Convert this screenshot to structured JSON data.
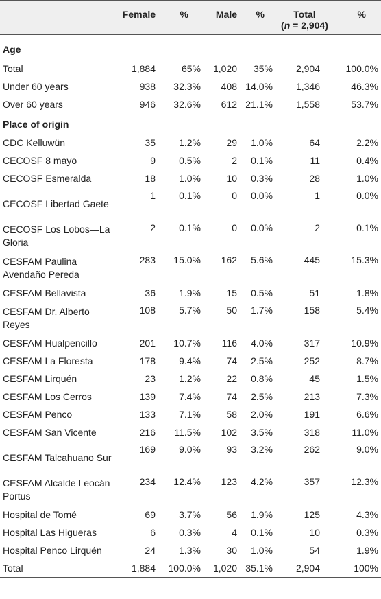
{
  "header": {
    "col0": "",
    "female": "Female",
    "female_pct": "%",
    "male": "Male",
    "male_pct": "%",
    "total": "Total",
    "total_n_label": "n",
    "total_n_value": " = 2,904",
    "total_open": "(",
    "total_close": ")",
    "total_pct": "%"
  },
  "sections": {
    "age": "Age",
    "origin": "Place of origin"
  },
  "age_rows": [
    {
      "label": "Total",
      "female": "1,884",
      "female_pct": "65%",
      "male": "1,020",
      "male_pct": "35%",
      "total": "2,904",
      "total_pct": "100.0%"
    },
    {
      "label": "Under 60 years",
      "female": "938",
      "female_pct": "32.3%",
      "male": "408",
      "male_pct": "14.0%",
      "total": "1,346",
      "total_pct": "46.3%"
    },
    {
      "label": "Over 60 years",
      "female": "946",
      "female_pct": "32.6%",
      "male": "612",
      "male_pct": "21.1%",
      "total": "1,558",
      "total_pct": "53.7%"
    }
  ],
  "origin_rows": [
    {
      "label": "CDC Kelluwün",
      "female": "35",
      "female_pct": "1.2%",
      "male": "29",
      "male_pct": "1.0%",
      "total": "64",
      "total_pct": "2.2%"
    },
    {
      "label": "CECOSF 8 mayo",
      "female": "9",
      "female_pct": "0.5%",
      "male": "2",
      "male_pct": "0.1%",
      "total": "11",
      "total_pct": "0.4%"
    },
    {
      "label": "CECOSF Esmeralda",
      "female": "18",
      "female_pct": "1.0%",
      "male": "10",
      "male_pct": "0.3%",
      "total": "28",
      "total_pct": "1.0%"
    },
    {
      "label": "CECOSF Libertad Gaete",
      "female": "1",
      "female_pct": "0.1%",
      "male": "0",
      "male_pct": "0.0%",
      "total": "1",
      "total_pct": "0.0%"
    },
    {
      "label": "CECOSF Los Lobos—La Gloria",
      "female": "2",
      "female_pct": "0.1%",
      "male": "0",
      "male_pct": "0.0%",
      "total": "2",
      "total_pct": "0.1%"
    },
    {
      "label": "CESFAM Paulina Avendaño Pereda",
      "female": "283",
      "female_pct": "15.0%",
      "male": "162",
      "male_pct": "5.6%",
      "total": "445",
      "total_pct": "15.3%"
    },
    {
      "label": "CESFAM Bellavista",
      "female": "36",
      "female_pct": "1.9%",
      "male": "15",
      "male_pct": "0.5%",
      "total": "51",
      "total_pct": "1.8%"
    },
    {
      "label": "CESFAM Dr. Alberto Reyes",
      "female": "108",
      "female_pct": "5.7%",
      "male": "50",
      "male_pct": "1.7%",
      "total": "158",
      "total_pct": "5.4%"
    },
    {
      "label": "CESFAM Hualpencillo",
      "female": "201",
      "female_pct": "10.7%",
      "male": "116",
      "male_pct": "4.0%",
      "total": "317",
      "total_pct": "10.9%"
    },
    {
      "label": "CESFAM La Floresta",
      "female": "178",
      "female_pct": "9.4%",
      "male": "74",
      "male_pct": "2.5%",
      "total": "252",
      "total_pct": "8.7%"
    },
    {
      "label": "CESFAM Lirquén",
      "female": "23",
      "female_pct": "1.2%",
      "male": "22",
      "male_pct": "0.8%",
      "total": "45",
      "total_pct": "1.5%"
    },
    {
      "label": "CESFAM Los Cerros",
      "female": "139",
      "female_pct": "7.4%",
      "male": "74",
      "male_pct": "2.5%",
      "total": "213",
      "total_pct": "7.3%"
    },
    {
      "label": "CESFAM Penco",
      "female": "133",
      "female_pct": "7.1%",
      "male": "58",
      "male_pct": "2.0%",
      "total": "191",
      "total_pct": "6.6%"
    },
    {
      "label": "CESFAM San Vicente",
      "female": "216",
      "female_pct": "11.5%",
      "male": "102",
      "male_pct": "3.5%",
      "total": "318",
      "total_pct": "11.0%"
    },
    {
      "label": "CESFAM Talcahuano Sur",
      "female": "169",
      "female_pct": "9.0%",
      "male": "93",
      "male_pct": "3.2%",
      "total": "262",
      "total_pct": "9.0%"
    },
    {
      "label": "CESFAM Alcalde Leocán Portus",
      "female": "234",
      "female_pct": "12.4%",
      "male": "123",
      "male_pct": "4.2%",
      "total": "357",
      "total_pct": "12.3%"
    },
    {
      "label": "Hospital de Tomé",
      "female": "69",
      "female_pct": "3.7%",
      "male": "56",
      "male_pct": "1.9%",
      "total": "125",
      "total_pct": "4.3%"
    },
    {
      "label": "Hospital Las Higueras",
      "female": "6",
      "female_pct": "0.3%",
      "male": "4",
      "male_pct": "0.1%",
      "total": "10",
      "total_pct": "0.3%"
    },
    {
      "label": "Hospital Penco Lirquén",
      "female": "24",
      "female_pct": "1.3%",
      "male": "30",
      "male_pct": "1.0%",
      "total": "54",
      "total_pct": "1.9%"
    },
    {
      "label": "Total",
      "female": "1,884",
      "female_pct": "100.0%",
      "male": "1,020",
      "male_pct": "35.1%",
      "total": "2,904",
      "total_pct": "100%"
    }
  ]
}
